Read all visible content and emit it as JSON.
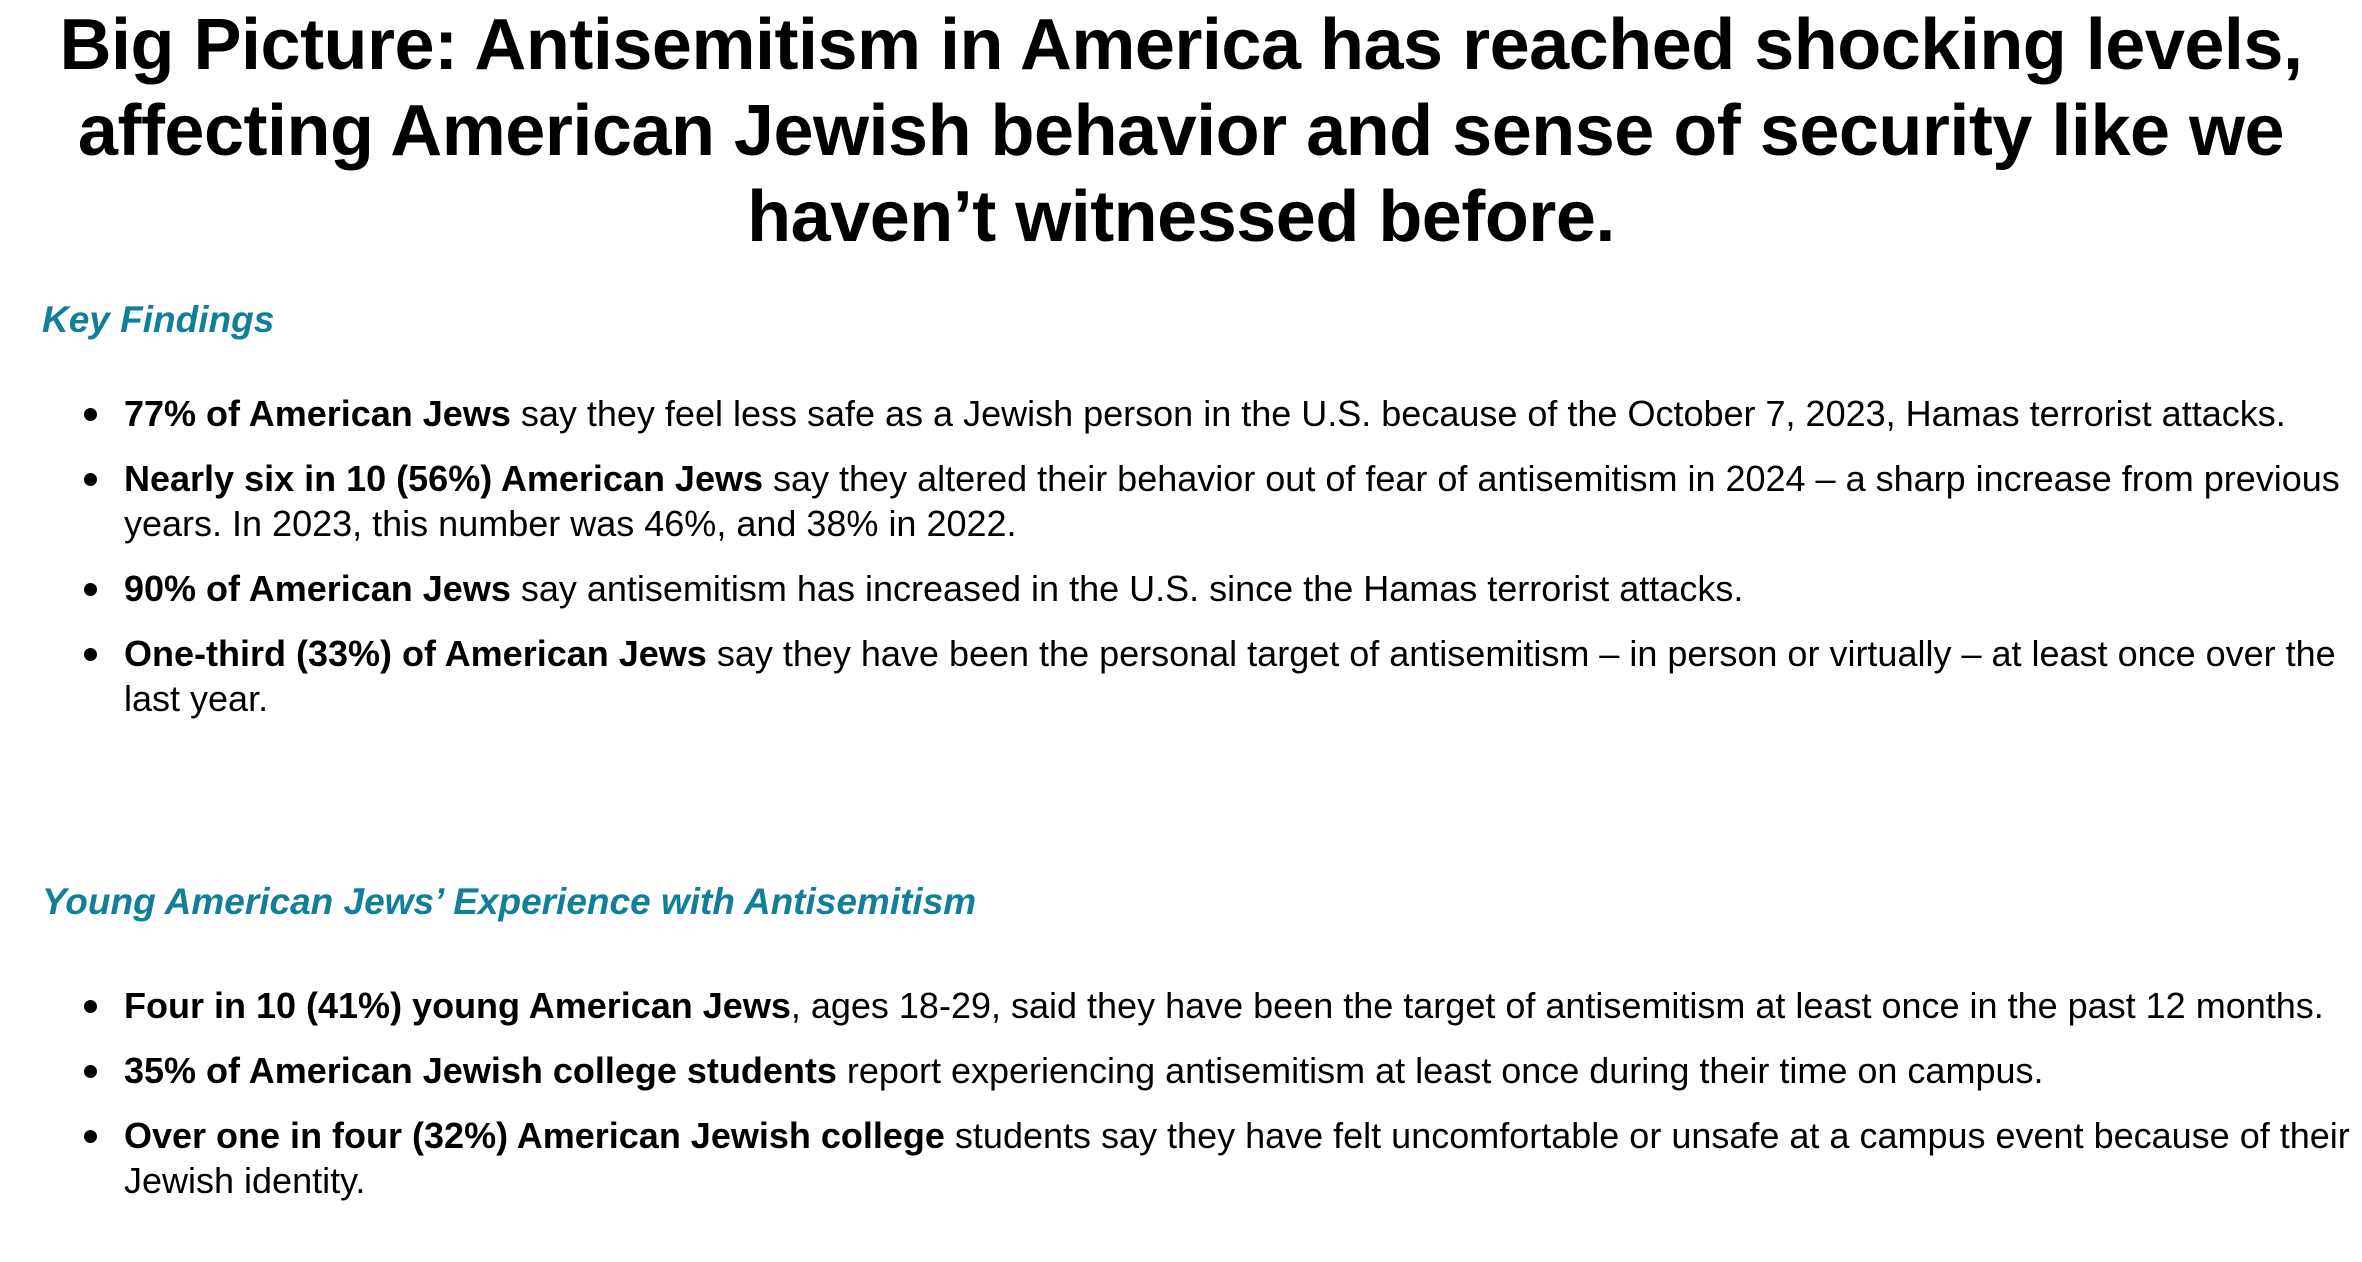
{
  "headline": "Big Picture: Antisemitism in America has reached shocking levels, affecting American Jewish behavior and sense of security like we haven’t witnessed before.",
  "sections": [
    {
      "title": "Key Findings",
      "items": [
        {
          "bold": "77% of American Jews",
          "text": " say they feel less safe as a Jewish person in the U.S. because of the October 7, 2023, Hamas terrorist attacks."
        },
        {
          "bold": "Nearly six in 10 (56%) American Jews",
          "text": " say they altered their behavior out of fear of antisemitism in 2024 – a sharp increase from previous years. In 2023, this number was 46%, and 38% in 2022."
        },
        {
          "bold": "90% of American Jews",
          "text": " say antisemitism has increased in the U.S. since the Hamas terrorist attacks."
        },
        {
          "bold": "One-third (33%) of American Jews",
          "text": " say they have been the personal target of antisemitism – in person or virtually – at least once over the last year."
        }
      ]
    },
    {
      "title": "Young American Jews’ Experience with Antisemitism",
      "items": [
        {
          "bold": "Four in 10 (41%) young American Jews",
          "text": ", ages 18-29, said they have been the target of antisemitism at least once in the past 12 months."
        },
        {
          "bold": "35% of American Jewish college students",
          "text": " report experiencing antisemitism at least once during their time on campus."
        },
        {
          "bold": "Over one in four (32%) American Jewish college",
          "text": " students say they have felt uncomfortable or unsafe at a campus event because of their Jewish identity."
        }
      ]
    }
  ],
  "colors": {
    "section_title": "#127f9a",
    "text": "#000000",
    "background": "#ffffff"
  }
}
